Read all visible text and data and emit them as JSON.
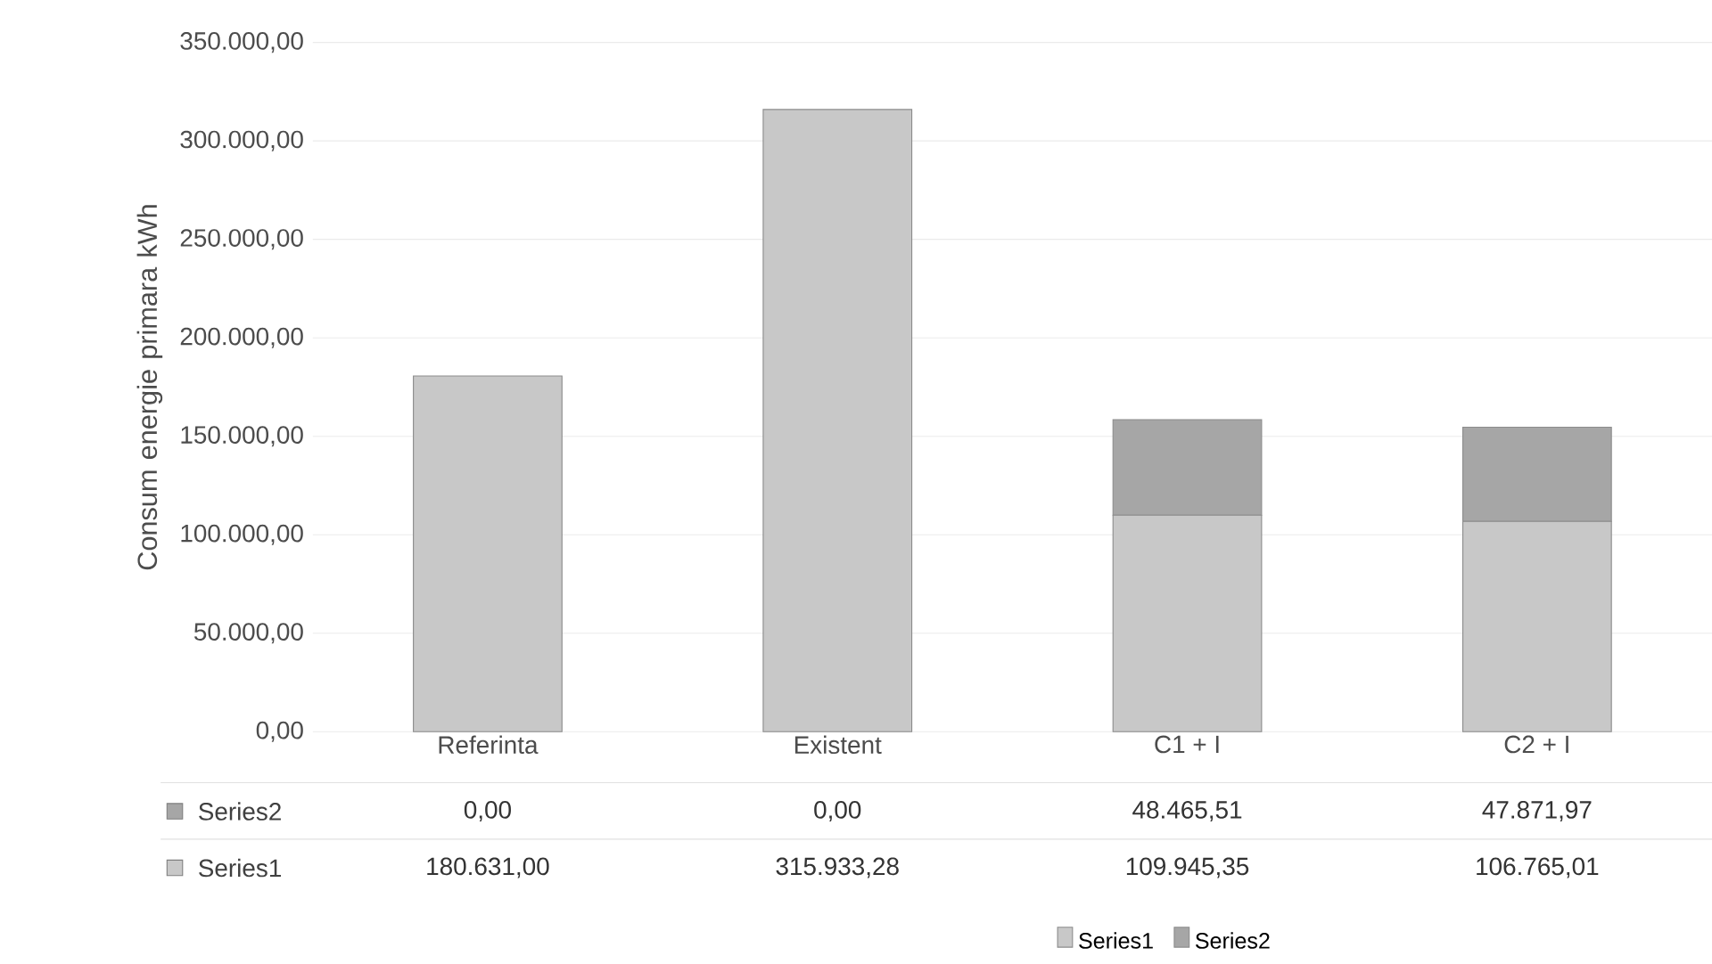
{
  "chart_data": {
    "type": "bar",
    "stacked": true,
    "ylabel": "Consum energie primara kWh",
    "categories": [
      "Referinta",
      "Existent",
      "C1 + I",
      "C2 + I"
    ],
    "series": [
      {
        "name": "Series1",
        "color": "#c8c8c8",
        "values": [
          180631.0,
          315933.28,
          109945.35,
          106765.01
        ],
        "value_labels": [
          "180.631,00",
          "315.933,28",
          "109.945,35",
          "106.765,01"
        ]
      },
      {
        "name": "Series2",
        "color": "#a6a6a6",
        "values": [
          0.0,
          0.0,
          48465.51,
          47871.97
        ],
        "value_labels": [
          "0,00",
          "0,00",
          "48.465,51",
          "47.871,97"
        ]
      }
    ],
    "ylim": [
      0,
      350000
    ],
    "yticks": [
      {
        "value": 0,
        "label": "0,00"
      },
      {
        "value": 50000,
        "label": "50.000,00"
      },
      {
        "value": 100000,
        "label": "100.000,00"
      },
      {
        "value": 150000,
        "label": "150.000,00"
      },
      {
        "value": 200000,
        "label": "200.000,00"
      },
      {
        "value": 250000,
        "label": "250.000,00"
      },
      {
        "value": 300000,
        "label": "300.000,00"
      },
      {
        "value": 350000,
        "label": "350.000,00"
      }
    ],
    "grid": "y",
    "legend": "bottom"
  }
}
